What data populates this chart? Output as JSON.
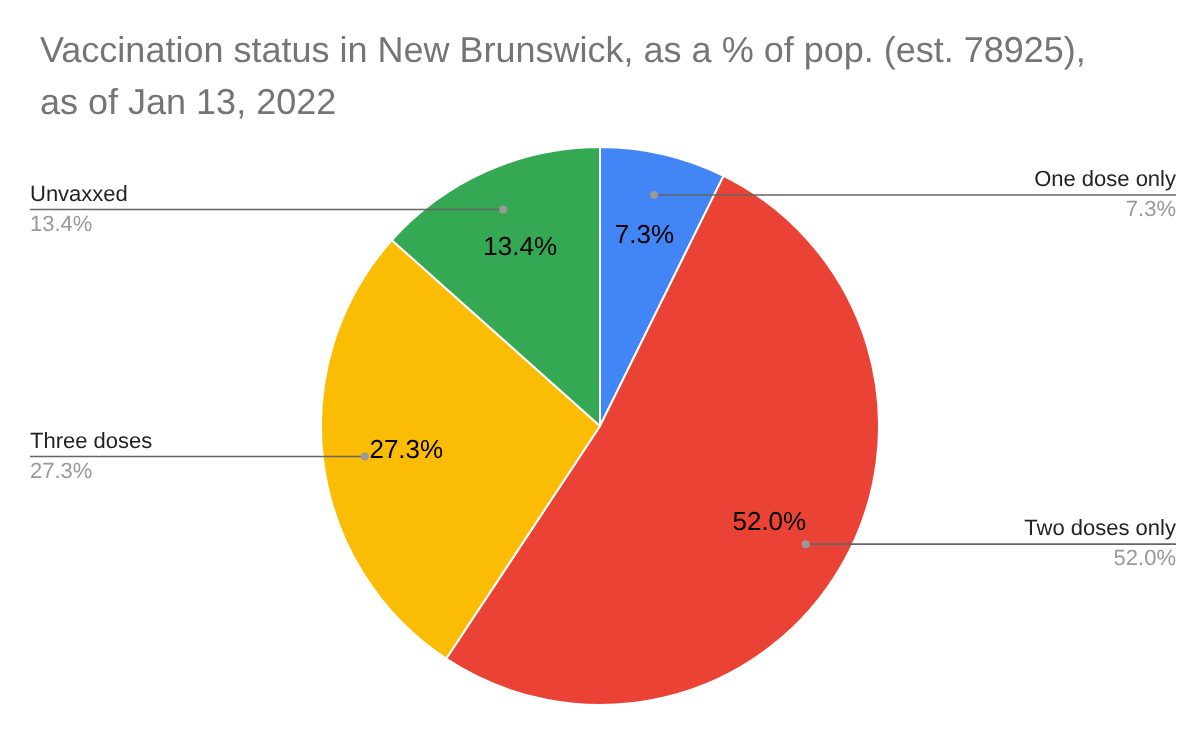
{
  "chart_data": {
    "type": "pie",
    "title": "Vaccination status in New Brunswick, as a % of pop. (est. 78925), as of Jan 13, 2022",
    "categories": [
      "One dose only",
      "Two doses only",
      "Three doses",
      "Unvaxxed"
    ],
    "values": [
      7.3,
      52.0,
      27.3,
      13.4
    ],
    "value_labels": [
      "7.3%",
      "52.0%",
      "27.3%",
      "13.4%"
    ],
    "colors": [
      "#4285f4",
      "#ea4335",
      "#fbbc04",
      "#34a853"
    ]
  }
}
